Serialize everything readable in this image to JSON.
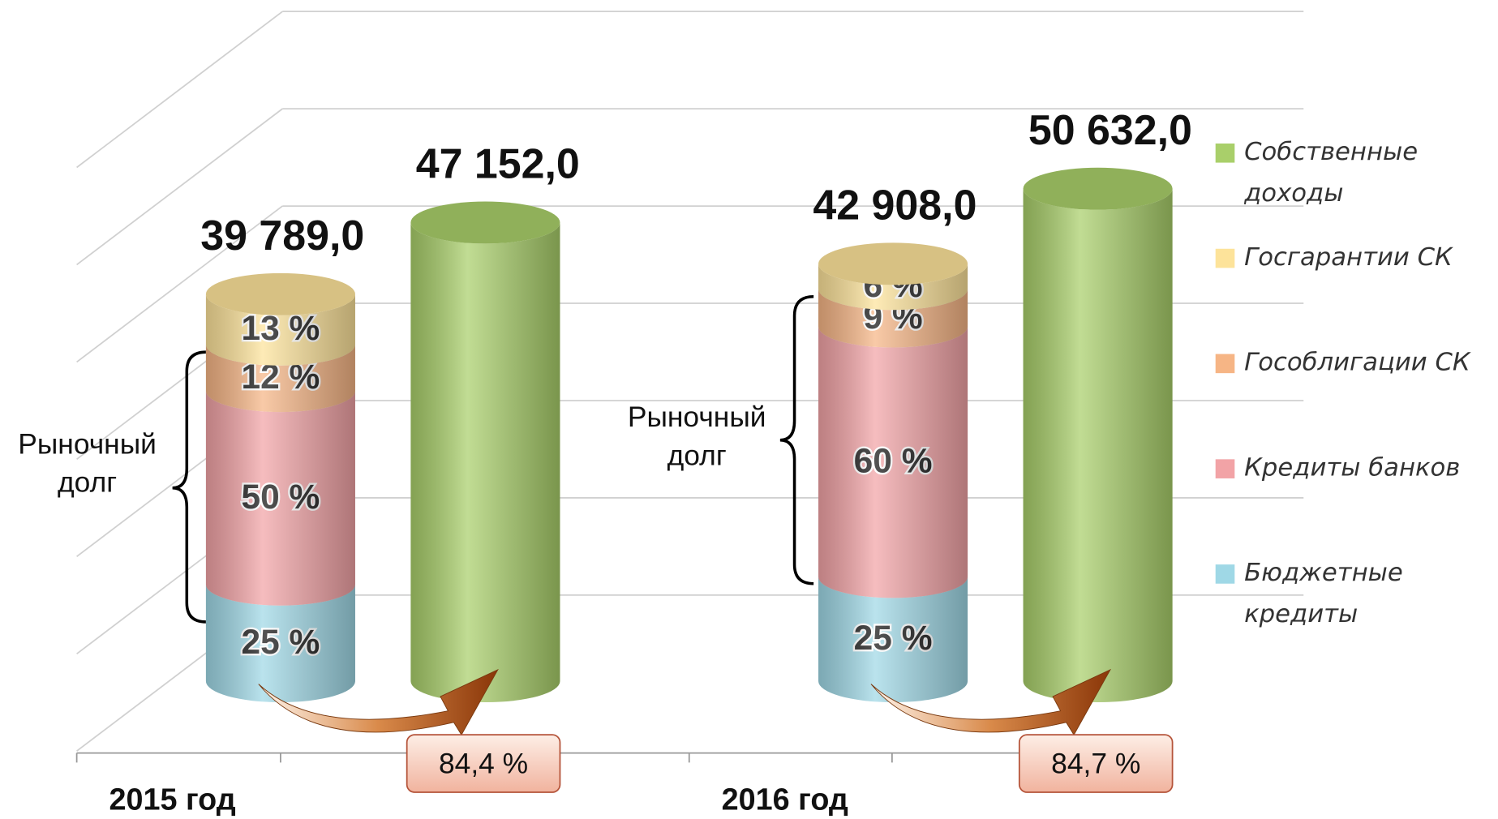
{
  "chart_data": {
    "type": "stacked_cylinder",
    "categories": [
      "2015 год",
      "2016 год"
    ],
    "series": [
      {
        "name": "Бюджетные кредиты",
        "color": "#9fd8e6",
        "values": [
          25,
          25
        ],
        "value_labels": [
          "25 %",
          "25 %"
        ],
        "stack": "debt"
      },
      {
        "name": "Кредиты банков",
        "color": "#f2a3a6",
        "values": [
          50,
          60
        ],
        "value_labels": [
          "50 %",
          "60 %"
        ],
        "stack": "debt"
      },
      {
        "name": "Гособлигации СК",
        "color": "#f6b585",
        "values": [
          12,
          9
        ],
        "value_labels": [
          "12 %",
          "9 %"
        ],
        "stack": "debt"
      },
      {
        "name": "Госгарантии СК",
        "color": "#fde39a",
        "values": [
          13,
          6
        ],
        "value_labels": [
          "13 %",
          "6 %"
        ],
        "stack": "debt"
      },
      {
        "name": "Собственные доходы",
        "color": "#a9cf6a",
        "values": [
          47152,
          50632
        ],
        "value_labels": [
          "47 152,0",
          "50 632,0"
        ],
        "stack": "revenue"
      }
    ],
    "debt_totals": {
      "values": [
        39789,
        42908
      ],
      "value_labels": [
        "39 789,0",
        "42 908,0"
      ]
    },
    "debt_to_revenue": {
      "values": [
        84.4,
        84.7
      ],
      "value_labels": [
        "84,4 %",
        "84,7 %"
      ]
    },
    "annotations": [
      "Рыночный долг",
      "Рыночный долг"
    ],
    "ylim": [
      0,
      60000
    ],
    "yticks": [
      0,
      10000,
      20000,
      30000,
      40000,
      50000,
      60000
    ],
    "grid": true,
    "legend": "right"
  }
}
